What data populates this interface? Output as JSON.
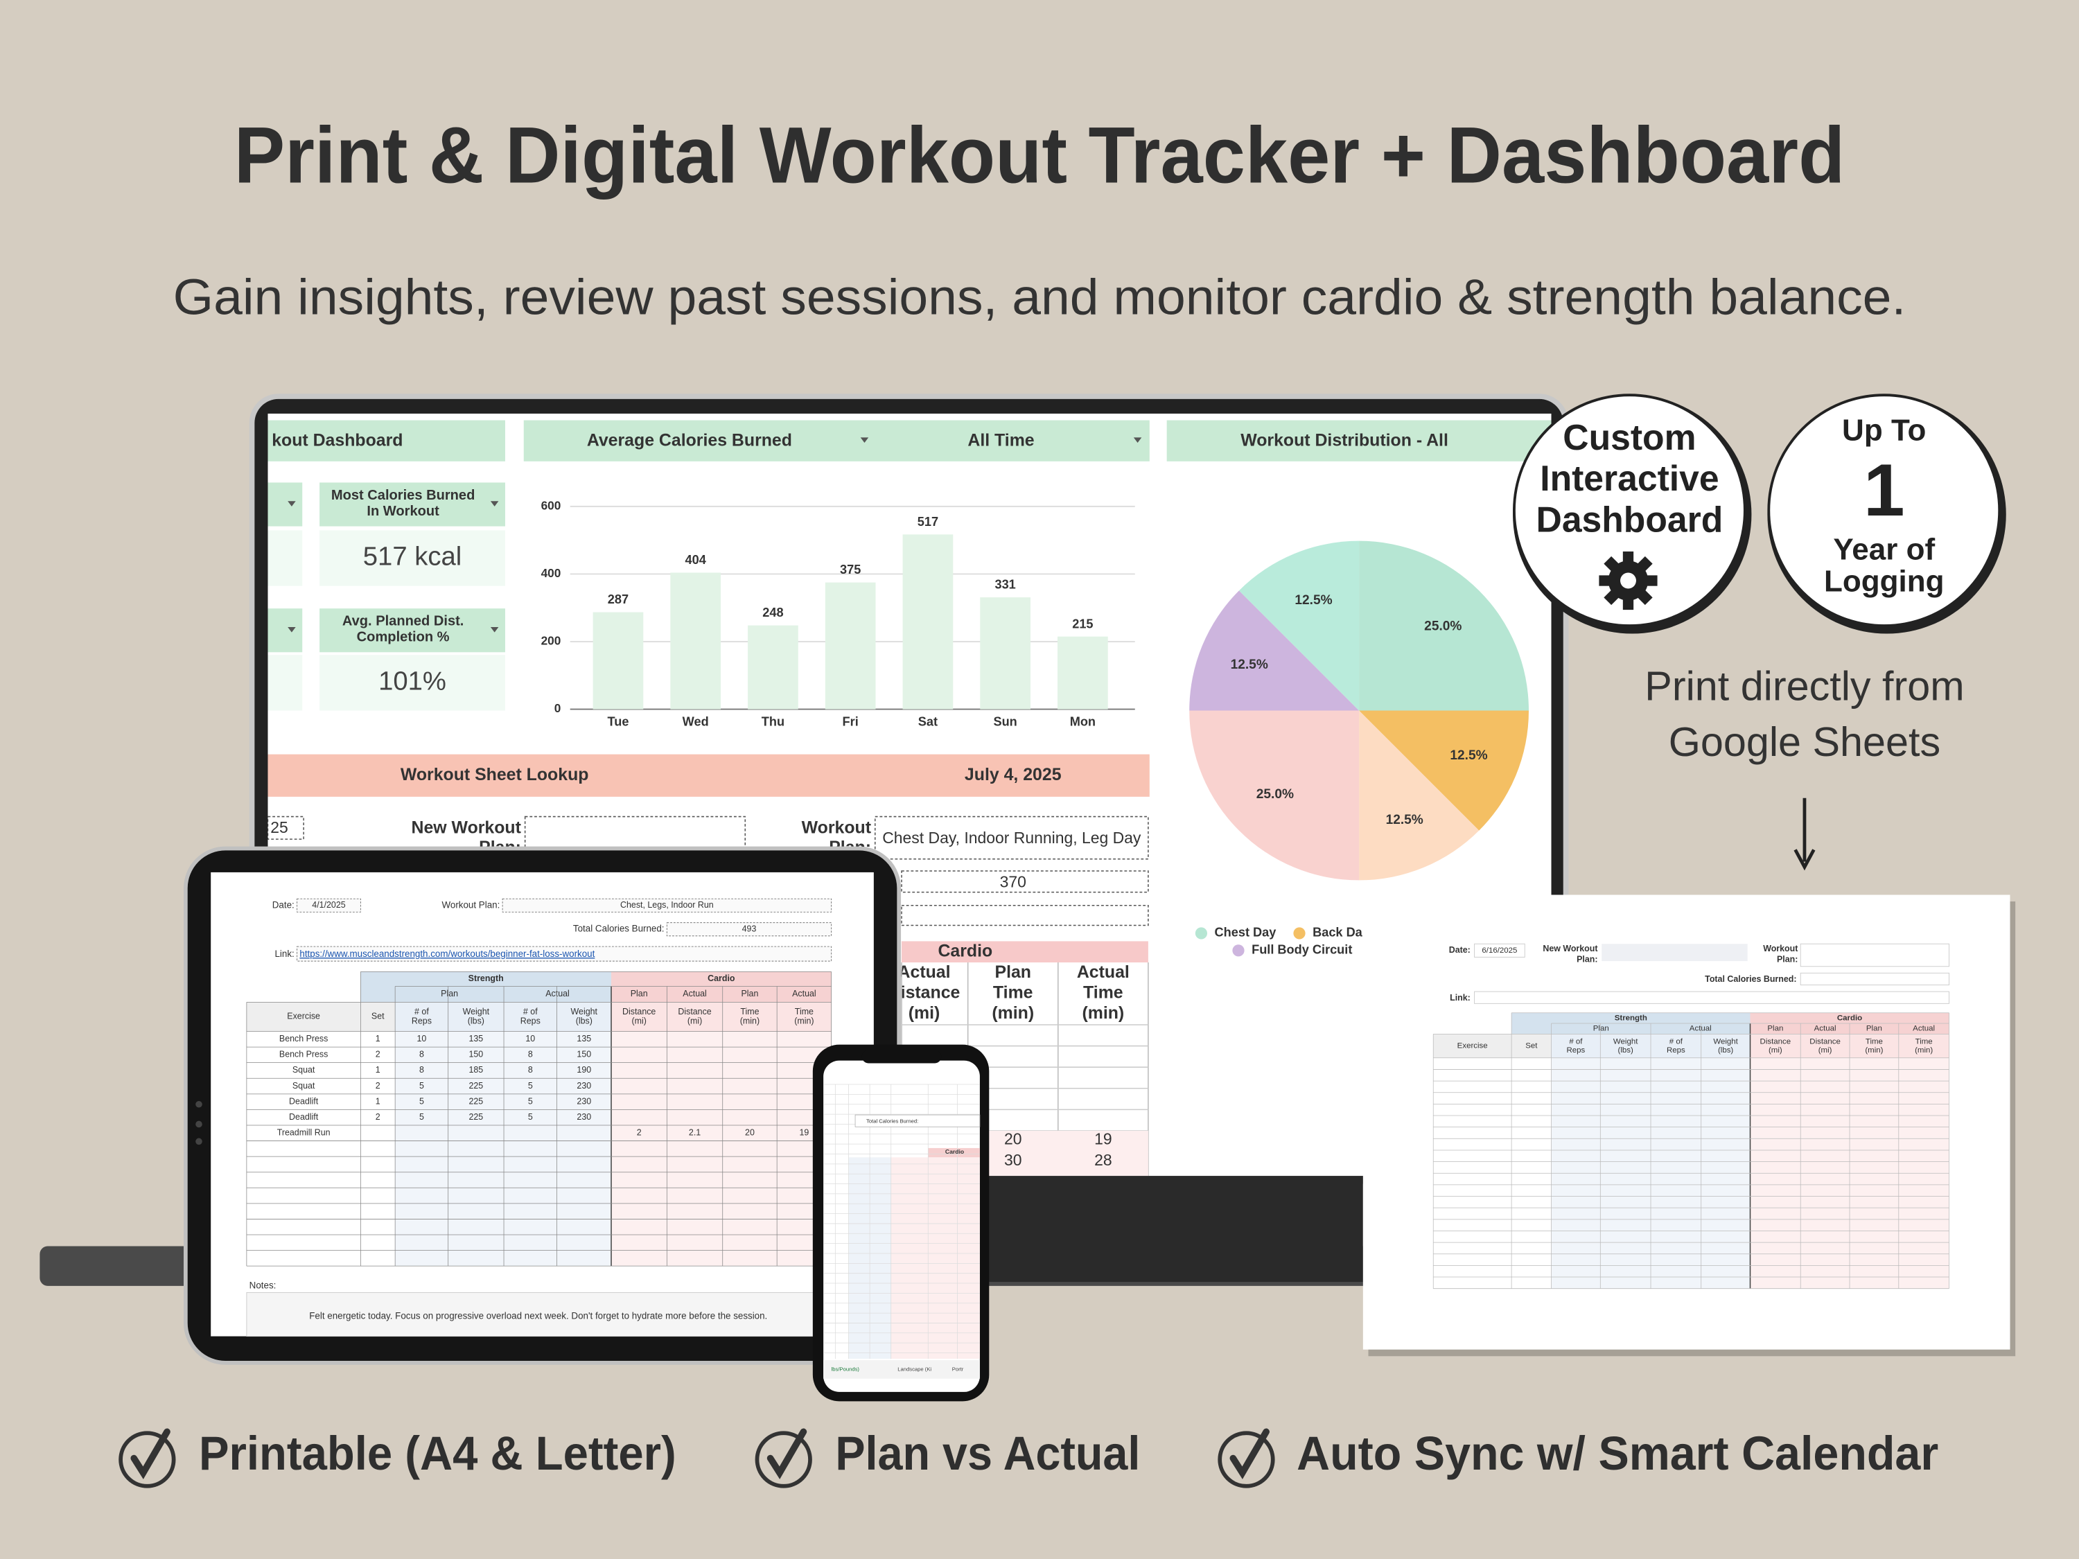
{
  "header": {
    "title": "Print & Digital Workout Tracker + Dashboard",
    "subtitle": "Gain insights, review past sessions, and monitor cardio & strength balance."
  },
  "badges": [
    {
      "lines": [
        "Custom",
        "Interactive",
        "Dashboard"
      ]
    },
    {
      "lines": [
        "Up To",
        "1",
        "Year of",
        "Logging"
      ]
    }
  ],
  "print_note": {
    "lines": [
      "Print directly from",
      "Google Sheets"
    ]
  },
  "features": [
    "Printable (A4 & Letter)",
    "Plan vs Actual",
    "Auto Sync w/ Smart Calendar"
  ],
  "dashboard": {
    "title": "kout Dashboard",
    "cards": [
      {
        "label": [
          "Most Calories Burned",
          "In Workout"
        ],
        "value": "517 kcal"
      },
      {
        "label": [
          "Avg. Planned Dist.",
          "Completion %"
        ],
        "value": "101%"
      }
    ],
    "bar_chart": {
      "type": "bar",
      "metric": "Average Calories Burned",
      "period": "All Time",
      "categories": [
        "Tue",
        "Wed",
        "Thu",
        "Fri",
        "Sat",
        "Sun",
        "Mon"
      ],
      "values": [
        287,
        404,
        248,
        375,
        517,
        331,
        215
      ],
      "color": "#e2f3e6",
      "ylim": [
        0,
        600
      ],
      "yticks": [
        0,
        200,
        400,
        600
      ],
      "grid": true
    },
    "pie_chart": {
      "type": "pie",
      "title": "Workout Distribution - All",
      "categories": [
        "Chest Day",
        "Back Da",
        null,
        null,
        "Full Body Circuit",
        null
      ],
      "values": [
        25,
        12.5,
        12.5,
        25,
        12.5,
        12.5
      ],
      "value_labels": [
        "25.0%",
        "12.5%",
        "12.5%",
        "25.0%",
        "12.5%",
        "12.5%"
      ],
      "colors": [
        "#b6e6d3",
        "#f4bf63",
        "#fddcc2",
        "#f9d2cf",
        "#cdb5de",
        "#b9ebdb"
      ]
    },
    "lookup": {
      "title": "Workout Sheet Lookup",
      "date": "July 4, 2025",
      "date_cut": "25",
      "new_plan_label": [
        "New Workout",
        "Plan:"
      ],
      "plan_label": [
        "Workout",
        "Plan:"
      ],
      "plan": "Chest Day, Indoor Running, Leg Day",
      "calories": 370,
      "cardio": "Cardio",
      "columns": [
        [
          "Actual",
          "Distance",
          "(mi)"
        ],
        [
          "Plan",
          "Time",
          "(min)"
        ],
        [
          "Actual",
          "Time",
          "(min)"
        ]
      ],
      "rows": [
        [
          null,
          20,
          19
        ],
        [
          null,
          30,
          28
        ]
      ]
    }
  },
  "tablet": {
    "date_label": "Date:",
    "date": "4/1/2025",
    "plan_label": "Workout Plan:",
    "plan": "Chest, Legs, Indoor Run",
    "calories_label": "Total Calories Burned:",
    "calories": 493,
    "link_label": "Link:",
    "link": "https://www.muscleandstrength.com/workouts/beginner-fat-loss-workout",
    "groups": [
      "Strength",
      "Cardio"
    ],
    "subgroups": [
      "Plan",
      "Actual",
      "Plan",
      "Actual",
      "Plan",
      "Actual"
    ],
    "columns": [
      [
        "Exercise"
      ],
      [
        "Set"
      ],
      [
        "# of",
        "Reps"
      ],
      [
        "Weight",
        "(lbs)"
      ],
      [
        "# of",
        "Reps"
      ],
      [
        "Weight",
        "(lbs)"
      ],
      [
        "Distance",
        "(mi)"
      ],
      [
        "Distance",
        "(mi)"
      ],
      [
        "Time",
        "(min)"
      ],
      [
        "Time",
        "(min)"
      ]
    ],
    "rows": [
      [
        "Bench Press",
        1,
        10,
        135,
        10,
        135,
        null,
        null,
        null,
        null
      ],
      [
        "Bench Press",
        2,
        8,
        150,
        8,
        150,
        null,
        null,
        null,
        null
      ],
      [
        "Squat",
        1,
        8,
        185,
        8,
        190,
        null,
        null,
        null,
        null
      ],
      [
        "Squat",
        2,
        5,
        225,
        5,
        230,
        null,
        null,
        null,
        null
      ],
      [
        "Deadlift",
        1,
        5,
        225,
        5,
        230,
        null,
        null,
        null,
        null
      ],
      [
        "Deadlift",
        2,
        5,
        225,
        5,
        230,
        null,
        null,
        null,
        null
      ],
      [
        "Treadmill Run",
        null,
        null,
        null,
        null,
        null,
        2,
        2.1,
        20,
        19
      ]
    ],
    "notes_label": "Notes:",
    "notes": "Felt energetic today. Focus on progressive overload next week. Don't forget to hydrate more before the session."
  },
  "phone": {
    "calories_label": "Total Calories Burned:",
    "cardio": "Cardio",
    "tabs": [
      "lbs/Pounds)",
      "Landscape (Ki",
      "Portr"
    ]
  },
  "print_sheet": {
    "date_label": "Date:",
    "date": "6/16/2025",
    "new_plan_label": [
      "New Workout",
      "Plan:"
    ],
    "plan_label": [
      "Workout",
      "Plan:"
    ],
    "calories_label": "Total Calories Burned:",
    "link_label": "Link:",
    "groups": [
      "Strength",
      "Cardio"
    ],
    "subgroups": [
      "Plan",
      "Actual",
      "Plan",
      "Actual",
      "Plan",
      "Actual"
    ],
    "columns": [
      [
        "Exercise"
      ],
      [
        "Set"
      ],
      [
        "# of",
        "Reps"
      ],
      [
        "Weight",
        "(lbs)"
      ],
      [
        "# of",
        "Reps"
      ],
      [
        "Weight",
        "(lbs)"
      ],
      [
        "Distance",
        "(mi)"
      ],
      [
        "Distance",
        "(mi)"
      ],
      [
        "Time",
        "(min)"
      ],
      [
        "Time",
        "(min)"
      ]
    ]
  }
}
